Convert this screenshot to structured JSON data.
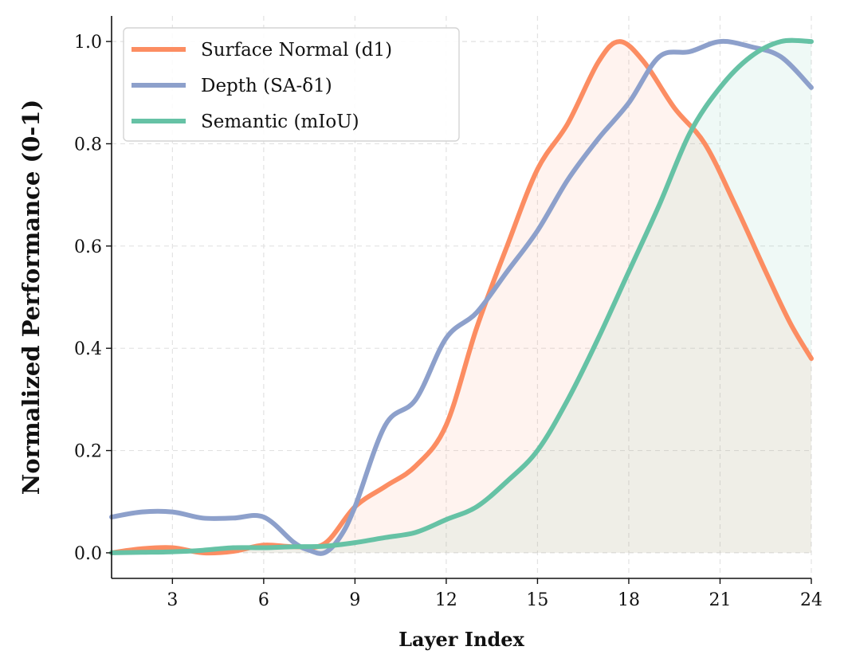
{
  "chart_data": {
    "type": "line",
    "title": "",
    "xlabel": "Layer Index",
    "ylabel": "Normalized Performance (0-1)",
    "xlim": [
      1,
      24
    ],
    "ylim": [
      -0.05,
      1.05
    ],
    "xticks": [
      3,
      6,
      9,
      12,
      15,
      18,
      21,
      24
    ],
    "yticks": [
      0.0,
      0.2,
      0.4,
      0.6,
      0.8,
      1.0
    ],
    "xtick_labels": [
      "3",
      "6",
      "9",
      "12",
      "15",
      "18",
      "21",
      "24"
    ],
    "ytick_labels": [
      "0.0",
      "0.2",
      "0.4",
      "0.6",
      "0.8",
      "1.0"
    ],
    "grid": true,
    "legend_position": "top-left",
    "series": [
      {
        "name": "Surface Normal (d1)",
        "color": "#fc8d62",
        "filled": true,
        "x": [
          1,
          2,
          3,
          4,
          5,
          6,
          7,
          8,
          9,
          10,
          11,
          12,
          13,
          14,
          15,
          16,
          17,
          17.7,
          18.5,
          19.5,
          20.5,
          21.5,
          22.5,
          23.3,
          24
        ],
        "y": [
          0.0,
          0.008,
          0.01,
          0.0,
          0.003,
          0.015,
          0.012,
          0.018,
          0.09,
          0.13,
          0.17,
          0.25,
          0.44,
          0.6,
          0.75,
          0.84,
          0.96,
          1.0,
          0.96,
          0.87,
          0.8,
          0.68,
          0.55,
          0.45,
          0.38
        ]
      },
      {
        "name": "Depth (SA-δ1)",
        "color": "#8da0cb",
        "filled": false,
        "x": [
          1,
          2,
          3,
          4,
          5,
          6,
          7,
          7.5,
          8,
          8.5,
          9,
          10,
          11,
          12,
          13,
          14,
          15,
          16,
          17,
          18,
          19,
          20,
          21,
          22,
          23,
          24
        ],
        "y": [
          0.07,
          0.08,
          0.08,
          0.068,
          0.068,
          0.07,
          0.02,
          0.005,
          0.0,
          0.03,
          0.09,
          0.25,
          0.3,
          0.42,
          0.47,
          0.55,
          0.63,
          0.73,
          0.81,
          0.88,
          0.97,
          0.98,
          1.0,
          0.99,
          0.97,
          0.91
        ]
      },
      {
        "name": "Semantic (mIoU)",
        "color": "#66c2a5",
        "filled": true,
        "x": [
          1,
          2,
          3,
          4,
          5,
          6,
          7,
          8,
          9,
          10,
          11,
          12,
          13,
          14,
          15,
          16,
          17,
          18,
          19,
          20,
          21,
          22,
          23,
          24
        ],
        "y": [
          0.0,
          0.001,
          0.002,
          0.005,
          0.01,
          0.01,
          0.012,
          0.013,
          0.02,
          0.03,
          0.04,
          0.065,
          0.09,
          0.14,
          0.2,
          0.3,
          0.42,
          0.55,
          0.68,
          0.82,
          0.91,
          0.97,
          1.0,
          1.0
        ]
      }
    ]
  }
}
